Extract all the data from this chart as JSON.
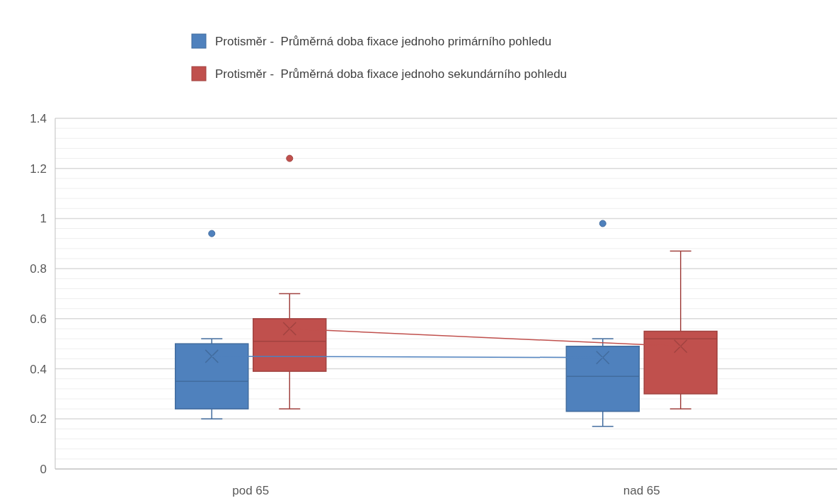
{
  "chart_data": {
    "type": "box",
    "categories": [
      "pod 65",
      "nad 65"
    ],
    "series": [
      {
        "name": "Protisměr -  Průměrná doba fixace jednoho primárního pohledu",
        "color": "#4f81bd",
        "boxes": [
          {
            "low": 0.2,
            "q1": 0.24,
            "median": 0.35,
            "q3": 0.5,
            "high": 0.52,
            "mean": 0.45,
            "outliers": [
              0.94
            ]
          },
          {
            "low": 0.17,
            "q1": 0.23,
            "median": 0.37,
            "q3": 0.49,
            "high": 0.52,
            "mean": 0.445,
            "outliers": [
              0.98
            ]
          }
        ]
      },
      {
        "name": "Protisměr -  Průměrná doba fixace jednoho sekundárního pohledu",
        "color": "#c0504d",
        "boxes": [
          {
            "low": 0.24,
            "q1": 0.39,
            "median": 0.51,
            "q3": 0.6,
            "high": 0.7,
            "mean": 0.56,
            "outliers": [
              1.24
            ]
          },
          {
            "low": 0.24,
            "q1": 0.3,
            "median": 0.52,
            "q3": 0.55,
            "high": 0.87,
            "mean": 0.49
          }
        ]
      },
      {
        "type": "line",
        "color": "#4f81bd",
        "values": [
          0.45,
          0.445
        ]
      },
      {
        "type": "line",
        "color": "#c0504d",
        "values": [
          0.56,
          0.49
        ]
      }
    ],
    "ylim": [
      0,
      1.4
    ],
    "yticks": [
      0,
      {
        "value": 0.04,
        "label": null
      },
      {
        "value": 0.08,
        "label": null
      },
      {
        "value": 0.12,
        "label": null
      },
      {
        "value": 0.16,
        "label": null
      },
      0.2,
      {
        "value": 0.24,
        "label": null
      },
      {
        "value": 0.28,
        "label": null
      },
      {
        "value": 0.32,
        "label": null
      },
      {
        "value": 0.36,
        "label": null
      },
      0.4,
      {
        "value": 0.44,
        "label": null
      },
      {
        "value": 0.48,
        "label": null
      },
      {
        "value": 0.52,
        "label": null
      },
      {
        "value": 0.56,
        "label": null
      },
      0.6,
      {
        "value": 0.64,
        "label": null
      },
      {
        "value": 0.68,
        "label": null
      },
      {
        "value": 0.72,
        "label": null
      },
      {
        "value": 0.76,
        "label": null
      },
      0.8,
      {
        "value": 0.84,
        "label": null
      },
      {
        "value": 0.88,
        "label": null
      },
      {
        "value": 0.92,
        "label": null
      },
      {
        "value": 0.96,
        "label": null
      },
      1,
      {
        "value": 1.04,
        "label": null
      },
      {
        "value": 1.08,
        "label": null
      },
      {
        "value": 1.12,
        "label": null
      },
      {
        "value": 1.16,
        "label": null
      },
      1.2,
      {
        "value": 1.24,
        "label": null
      },
      {
        "value": 1.28,
        "label": null
      },
      {
        "value": 1.32,
        "label": null
      },
      {
        "value": 1.36,
        "label": null
      },
      1.4
    ],
    "grid": "y",
    "legend": "top"
  }
}
